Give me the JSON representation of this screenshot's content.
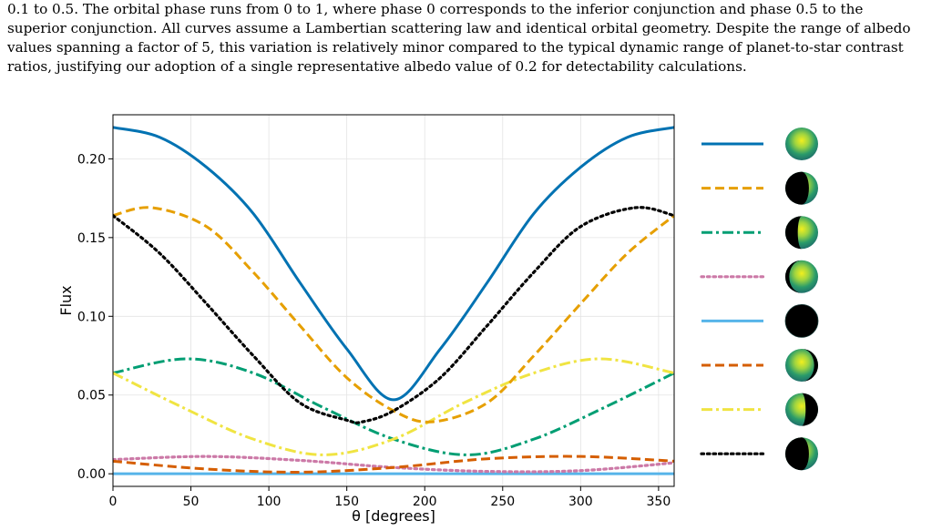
{
  "caption": {
    "lines": [
      "0.1 to 0.5. The orbital phase runs from 0 to 1, where phase 0 corresponds to the inferior conjunction and phase 0.5 to the",
      "superior conjunction. All curves assume a Lambertian scattering law and identical orbital geometry. Despite the range of albedo",
      "values spanning a factor of 5, this variation is relatively minor compared to the typical dynamic range of planet-to-star contrast",
      "ratios, justifying our adoption of a single representative albedo value of 0.2 for detectability calculations."
    ]
  },
  "chart_data": {
    "type": "line",
    "xlabel": "θ [degrees]",
    "ylabel": "Flux",
    "xlim": [
      0,
      360
    ],
    "ylim": [
      -0.008,
      0.228
    ],
    "xticks": [
      0,
      50,
      100,
      150,
      200,
      250,
      300,
      350
    ],
    "yticks": [
      0.0,
      0.05,
      0.1,
      0.15,
      0.2
    ],
    "ytick_labels": [
      "0.00",
      "0.05",
      "0.10",
      "0.15",
      "0.20"
    ],
    "grid": true,
    "legend": "outside-right",
    "series": [
      {
        "color": "#0072b2",
        "dash": "solid",
        "x": [
          0,
          30,
          60,
          90,
          120,
          150,
          180,
          210,
          240,
          270,
          300,
          330,
          360
        ],
        "y": [
          0.22,
          0.2137,
          0.1947,
          0.1653,
          0.1213,
          0.0793,
          0.047,
          0.0793,
          0.1213,
          0.1653,
          0.1947,
          0.2137,
          0.22
        ]
      },
      {
        "color": "#e69f00",
        "dash": "dashed",
        "x": [
          0,
          25,
          60,
          90,
          120,
          150,
          180,
          205,
          240,
          270,
          300,
          330,
          360
        ],
        "y": [
          0.164,
          0.169,
          0.157,
          0.128,
          0.094,
          0.061,
          0.04,
          0.033,
          0.045,
          0.075,
          0.108,
          0.14,
          0.164
        ]
      },
      {
        "color": "#009e73",
        "dash": "dashdot",
        "x": [
          0,
          47,
          90,
          135,
          180,
          227,
          270,
          315,
          360
        ],
        "y": [
          0.064,
          0.073,
          0.064,
          0.042,
          0.022,
          0.012,
          0.022,
          0.042,
          0.064
        ]
      },
      {
        "color": "#cc79a7",
        "dash": "dotted",
        "x": [
          0,
          60,
          120,
          180,
          240,
          300,
          360
        ],
        "y": [
          0.009,
          0.011,
          0.0085,
          0.004,
          0.0015,
          0.002,
          0.007
        ]
      },
      {
        "color": "#56b4e9",
        "dash": "solid",
        "x": [
          0,
          360
        ],
        "y": [
          0.0,
          0.0
        ]
      },
      {
        "color": "#d55e00",
        "dash": "dashed",
        "x": [
          0,
          60,
          120,
          180,
          240,
          300,
          360
        ],
        "y": [
          0.008,
          0.003,
          0.001,
          0.004,
          0.0095,
          0.011,
          0.008
        ]
      },
      {
        "color": "#f0e442",
        "dash": "dashdot",
        "x": [
          0,
          45,
          90,
          135,
          180,
          225,
          270,
          313,
          360
        ],
        "y": [
          0.064,
          0.042,
          0.022,
          0.012,
          0.022,
          0.045,
          0.064,
          0.073,
          0.064
        ]
      },
      {
        "color": "#000000",
        "dash": "dotted",
        "x": [
          0,
          30,
          60,
          90,
          120,
          150,
          160,
          180,
          210,
          240,
          270,
          300,
          335,
          360
        ],
        "y": [
          0.164,
          0.14,
          0.108,
          0.075,
          0.045,
          0.034,
          0.033,
          0.04,
          0.061,
          0.094,
          0.128,
          0.157,
          0.169,
          0.164
        ]
      }
    ],
    "legend_entries": [
      {
        "line_color": "#0072b2",
        "dash": "solid",
        "planet_icon": "full-phase-planet-icon"
      },
      {
        "line_color": "#e69f00",
        "dash": "dashed",
        "planet_icon": "gibbous-phase-planet-icon"
      },
      {
        "line_color": "#009e73",
        "dash": "dashdot",
        "planet_icon": "crescent-phase-planet-icon"
      },
      {
        "line_color": "#cc79a7",
        "dash": "dotted",
        "planet_icon": "thin-crescent-planet-icon"
      },
      {
        "line_color": "#56b4e9",
        "dash": "solid",
        "planet_icon": "dark-planet-icon"
      },
      {
        "line_color": "#d55e00",
        "dash": "dashed",
        "planet_icon": "thin-crescent-planet-icon"
      },
      {
        "line_color": "#f0e442",
        "dash": "dashdot",
        "planet_icon": "crescent-phase-planet-icon"
      },
      {
        "line_color": "#000000",
        "dash": "dotted",
        "planet_icon": "gibbous-phase-planet-icon"
      }
    ]
  }
}
